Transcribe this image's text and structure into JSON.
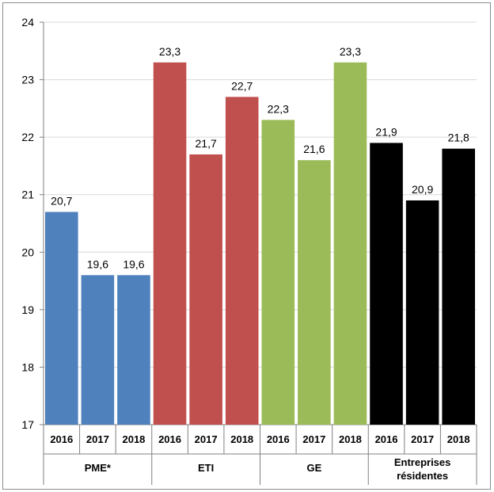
{
  "chart_data": {
    "type": "bar",
    "title": "",
    "xlabel": "",
    "ylabel": "",
    "ylim": [
      17,
      24
    ],
    "yticks": [
      17,
      18,
      19,
      20,
      21,
      22,
      23,
      24
    ],
    "grid": true,
    "legend": "none",
    "decimal_separator": ",",
    "groups": [
      {
        "name": "PME*",
        "color": "#4f81bd",
        "years": [
          "2016",
          "2017",
          "2018"
        ],
        "values": [
          20.7,
          19.6,
          19.6
        ],
        "labels": [
          "20,7",
          "19,6",
          "19,6"
        ]
      },
      {
        "name": "ETI",
        "color": "#c0504d",
        "years": [
          "2016",
          "2017",
          "2018"
        ],
        "values": [
          23.3,
          21.7,
          22.7
        ],
        "labels": [
          "23,3",
          "21,7",
          "22,7"
        ]
      },
      {
        "name": "GE",
        "color": "#9bbb59",
        "years": [
          "2016",
          "2017",
          "2018"
        ],
        "values": [
          22.3,
          21.6,
          23.3
        ],
        "labels": [
          "22,3",
          "21,6",
          "23,3"
        ]
      },
      {
        "name": "Entreprises\nrésidentes",
        "color": "#000000",
        "years": [
          "2016",
          "2017",
          "2018"
        ],
        "values": [
          21.9,
          20.9,
          21.8
        ],
        "labels": [
          "21,9",
          "20,9",
          "21,8"
        ]
      }
    ]
  }
}
